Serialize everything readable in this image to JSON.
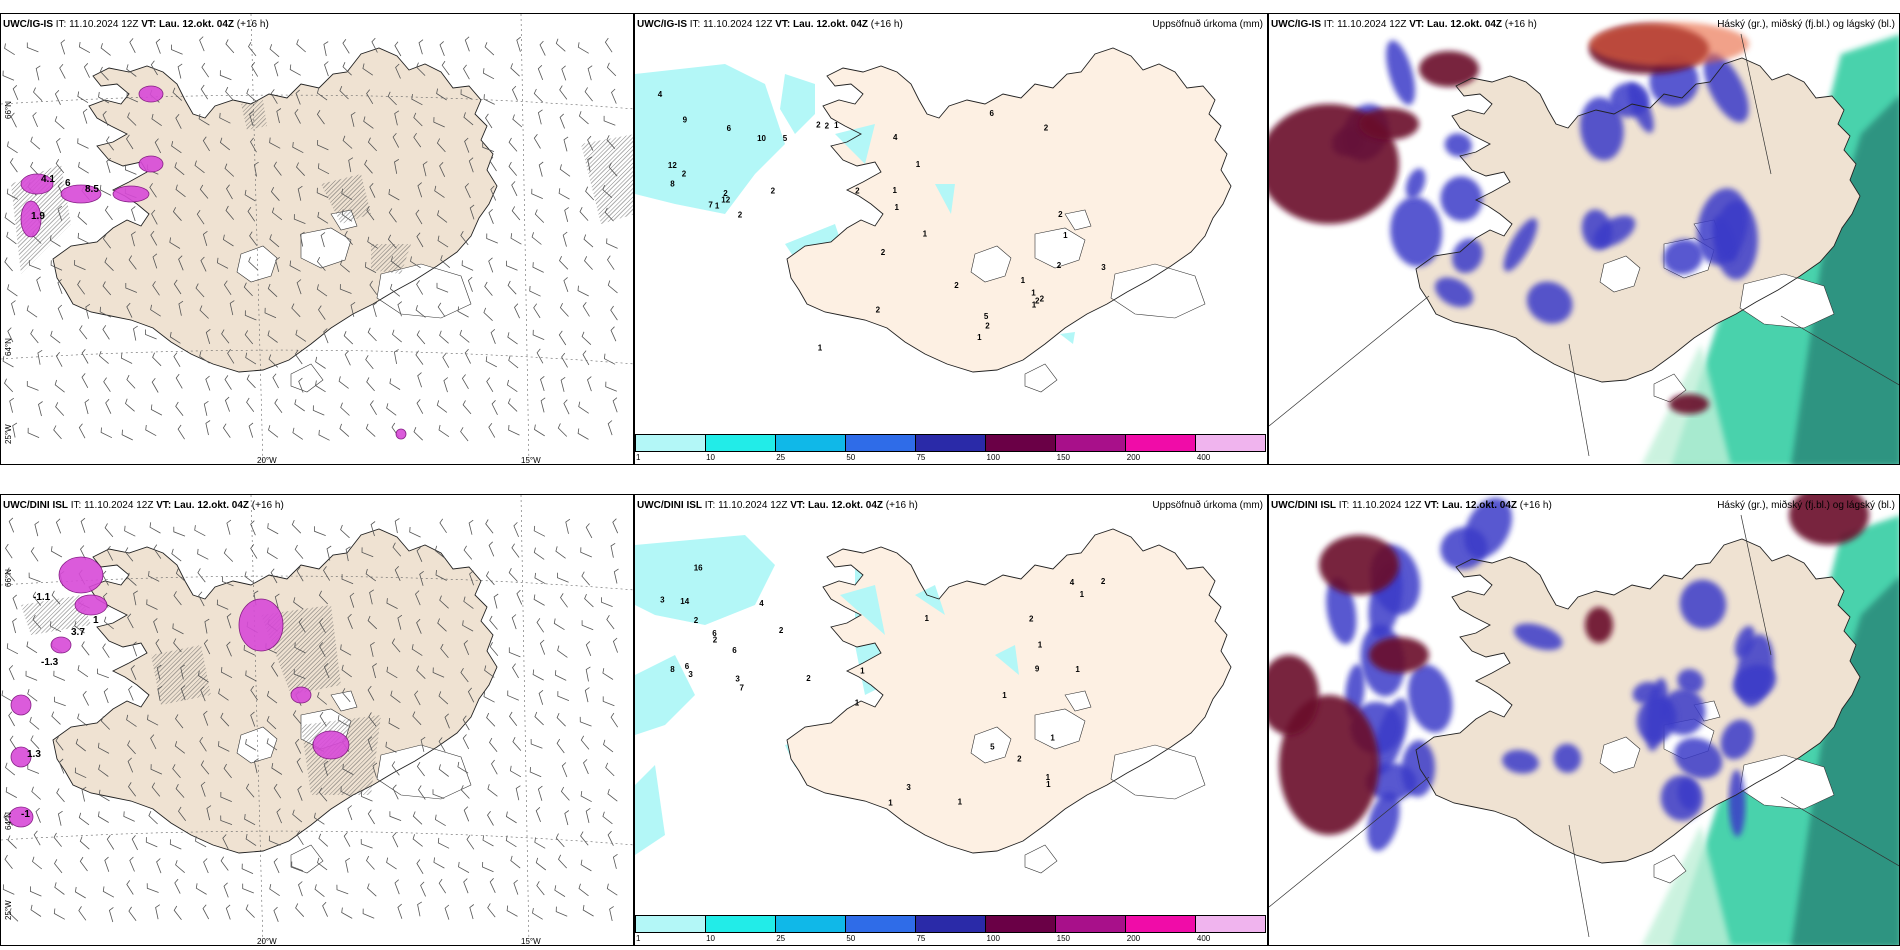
{
  "rows": [
    {
      "wind": {
        "model": "UWC/IG-IS",
        "rest": " IT: 11.10.2024 12Z ",
        "vt": "VT: Lau. 12.okt. 04Z",
        "lead": " (+16 h)"
      },
      "precip": {
        "model": "UWC/IG-IS",
        "rest": " IT: 11.10.2024 12Z ",
        "vt": "VT: Lau. 12.okt. 04Z",
        "lead": " (+16 h)",
        "right": "Uppsöfnuð úrkoma (mm)"
      },
      "cloud": {
        "model": "UWC/IG-IS",
        "rest": " IT: 11.10.2024 12Z ",
        "vt": "VT: Lau. 12.okt. 04Z",
        "lead": " (+16 h)",
        "right": "Háský (gr.), miðský (fj.bl.) og lágský (bl.)"
      },
      "precip_labels": [
        "7",
        "2",
        "6",
        "4",
        "5",
        "8",
        "12",
        "12",
        "10",
        "9",
        "2",
        "2",
        "1",
        "2",
        "2",
        "2",
        "1",
        "2",
        "3",
        "2",
        "1",
        "1",
        "2",
        "1",
        "5",
        "2",
        "6",
        "1",
        "4",
        "1",
        "2",
        "1",
        "2",
        "2",
        "1",
        "1",
        "2",
        "2",
        "1",
        "2",
        "1"
      ],
      "wind_labels": [
        "4.1",
        "8.5",
        "1.9",
        "6"
      ]
    },
    {
      "wind": {
        "model": "UWC/DINI ISL",
        "rest": " IT: 11.10.2024 12Z ",
        "vt": "VT: Lau. 12.okt. 04Z",
        "lead": " (+16 h)"
      },
      "precip": {
        "model": "UWC/DINI ISL",
        "rest": " IT: 11.10.2024 12Z ",
        "vt": "VT: Lau. 12.okt. 04Z",
        "lead": " (+16 h)",
        "right": "Uppsöfnuð úrkoma (mm)"
      },
      "cloud": {
        "model": "UWC/DINI ISL",
        "rest": " IT: 11.10.2024 12Z ",
        "vt": "VT: Lau. 12.okt. 04Z",
        "lead": " (+16 h)",
        "right": "Háský (gr.), miðský (fj.bl.) og lágský (bl.)"
      },
      "precip_labels": [
        "7",
        "16",
        "6",
        "14",
        "4",
        "3",
        "2",
        "2",
        "2",
        "3",
        "8",
        "3",
        "6",
        "6",
        "9",
        "4",
        "2",
        "1",
        "1",
        "1",
        "1",
        "5",
        "1",
        "1",
        "1",
        "1",
        "1",
        "1",
        "1",
        "1",
        "2",
        "2",
        "2",
        "3"
      ],
      "wind_labels": [
        "-1.1",
        "1",
        "3.7",
        "-1.3",
        "1.3",
        "-1"
      ]
    }
  ],
  "axis_labels": {
    "lat66": "66°N",
    "lat64": "64°N",
    "lon25": "25°W",
    "lon20": "20°W",
    "lon15": "15°W"
  },
  "colorbar": {
    "ticks": [
      "1",
      "10",
      "25",
      "50",
      "75",
      "100",
      "150",
      "200",
      "400"
    ],
    "colors": [
      "#b3f7f7",
      "#22ece8",
      "#10b8e8",
      "#2f6ce8",
      "#2a2aa8",
      "#6a0046",
      "#a8108a",
      "#f00ca8",
      "#f0b4ee"
    ]
  },
  "colors": {
    "land": "#efe2d2",
    "land_precip": "#fdf0e3",
    "precip_light": "#b3f7f7",
    "wind_purple": "#d84ad8",
    "cloud_high_dark": "#6a0a2a",
    "cloud_mid": "#3a3ac8",
    "cloud_low_green": "#1ec898",
    "cloud_low_teal": "#2a8a7a"
  }
}
